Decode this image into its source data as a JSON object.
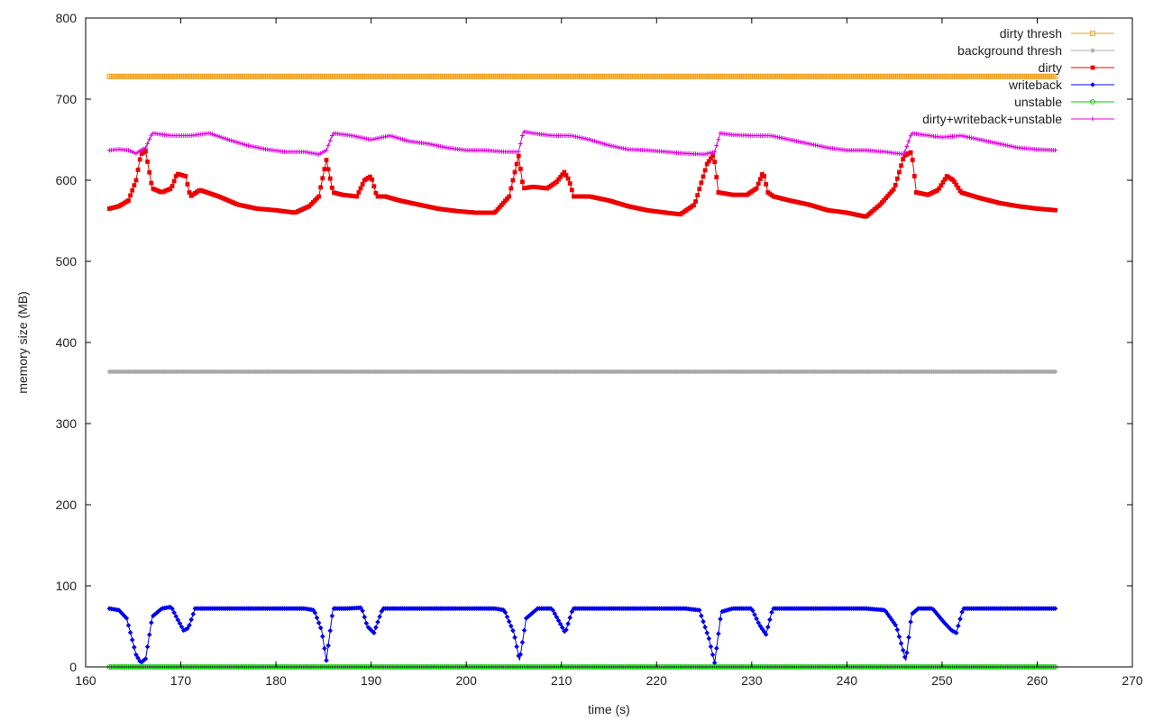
{
  "chart_data": {
    "type": "line",
    "xlabel": "time (s)",
    "ylabel": "memory size (MB)",
    "xlim": [
      160,
      270
    ],
    "ylim": [
      0,
      800
    ],
    "xticks": [
      160,
      170,
      180,
      190,
      200,
      210,
      220,
      230,
      240,
      250,
      260,
      270
    ],
    "yticks": [
      0,
      100,
      200,
      300,
      400,
      500,
      600,
      700,
      800
    ],
    "grid": false,
    "legend_position": "top-right",
    "series": [
      {
        "name": "dirty thresh",
        "color": "#f0a020",
        "marker": "square-open",
        "x": [
          162.5,
          170,
          180,
          190,
          200,
          210,
          220,
          230,
          240,
          250,
          262
        ],
        "values": [
          728,
          728,
          728,
          728,
          728,
          728,
          728,
          728,
          728,
          728,
          728
        ]
      },
      {
        "name": "background thresh",
        "color": "#a8a8a8",
        "marker": "star",
        "x": [
          162.5,
          170,
          180,
          190,
          200,
          210,
          220,
          230,
          240,
          250,
          262
        ],
        "values": [
          364,
          364,
          364,
          364,
          364,
          364,
          364,
          364,
          364,
          364,
          364
        ]
      },
      {
        "name": "dirty",
        "color": "#ee0000",
        "marker": "square",
        "x": [
          162.5,
          163.5,
          164.5,
          165.3,
          165.8,
          166.3,
          167,
          168,
          169,
          169.6,
          170.5,
          171,
          172,
          174,
          176,
          178,
          180,
          182,
          183.5,
          184.5,
          185.3,
          186,
          187,
          188.5,
          189.3,
          190,
          190.6,
          191.5,
          193,
          195,
          197,
          199,
          201,
          203,
          204.5,
          205.5,
          206,
          207,
          208.5,
          209.5,
          210.3,
          210.8,
          211.3,
          213,
          215,
          217,
          219,
          221,
          222.5,
          224,
          225.3,
          226,
          226.5,
          228,
          229.5,
          230.5,
          231.2,
          231.7,
          232.3,
          234,
          236,
          238,
          240,
          242,
          243.5,
          245,
          246,
          246.8,
          247.3,
          248.5,
          249.6,
          250.5,
          251.2,
          252,
          254,
          256,
          258,
          260,
          262
        ],
        "values": [
          565,
          568,
          575,
          600,
          632,
          636,
          590,
          585,
          590,
          608,
          605,
          580,
          588,
          580,
          570,
          565,
          563,
          560,
          568,
          580,
          625,
          585,
          582,
          580,
          600,
          605,
          580,
          580,
          575,
          570,
          565,
          562,
          560,
          560,
          580,
          630,
          590,
          592,
          590,
          598,
          610,
          600,
          580,
          580,
          575,
          568,
          563,
          560,
          558,
          570,
          620,
          632,
          585,
          582,
          582,
          590,
          610,
          585,
          580,
          575,
          570,
          563,
          560,
          555,
          570,
          590,
          630,
          635,
          585,
          582,
          588,
          605,
          600,
          585,
          578,
          572,
          568,
          565,
          563
        ]
      },
      {
        "name": "writeback",
        "color": "#0000ee",
        "marker": "diamond",
        "x": [
          162.5,
          163.5,
          164.3,
          164.8,
          165.3,
          165.8,
          166.3,
          167,
          168,
          169,
          169.6,
          170.3,
          170.8,
          171.5,
          173,
          175,
          177,
          179,
          181,
          183,
          184,
          184.8,
          185.3,
          186,
          187.5,
          189,
          189.6,
          190.3,
          191.2,
          193,
          195,
          197,
          199,
          201,
          203,
          204,
          205,
          205.6,
          206.3,
          207.5,
          209,
          209.8,
          210.4,
          211.2,
          213,
          215,
          217,
          219,
          221,
          223,
          224.5,
          225.5,
          226.1,
          226.8,
          228,
          230,
          230.8,
          231.5,
          232.2,
          234,
          236,
          238,
          240,
          242,
          244,
          245.2,
          246.2,
          246.8,
          247.5,
          249,
          250.2,
          251,
          251.5,
          252.2,
          254,
          256,
          258,
          260,
          262
        ],
        "values": [
          72,
          70,
          60,
          38,
          15,
          5,
          10,
          62,
          72,
          74,
          60,
          45,
          48,
          72,
          72,
          72,
          72,
          72,
          72,
          72,
          70,
          45,
          8,
          72,
          72,
          73,
          50,
          42,
          72,
          72,
          72,
          72,
          72,
          72,
          72,
          70,
          42,
          8,
          60,
          72,
          72,
          55,
          42,
          72,
          72,
          72,
          72,
          72,
          72,
          72,
          70,
          35,
          5,
          68,
          72,
          72,
          52,
          40,
          72,
          72,
          72,
          72,
          72,
          72,
          70,
          50,
          8,
          65,
          72,
          72,
          55,
          45,
          42,
          72,
          72,
          72,
          72,
          72,
          72
        ]
      },
      {
        "name": "unstable",
        "color": "#00cc00",
        "marker": "circle-open",
        "x": [
          162.5,
          170,
          180,
          190,
          200,
          210,
          220,
          230,
          240,
          250,
          262
        ],
        "values": [
          0,
          0,
          0,
          0,
          0,
          0,
          0,
          0,
          0,
          0,
          0
        ]
      },
      {
        "name": "dirty+writeback+unstable",
        "color": "#dd00dd",
        "marker": "plus",
        "x": [
          162.5,
          163.5,
          164.5,
          165.3,
          165.8,
          166.3,
          167,
          169,
          171,
          173,
          175,
          177,
          179,
          181,
          183,
          184.5,
          185.3,
          186,
          188,
          190,
          192,
          194,
          196,
          198,
          200,
          202,
          204,
          205.5,
          206,
          207,
          209,
          211,
          213,
          215,
          217,
          219,
          221,
          223,
          225,
          226.1,
          226.7,
          228,
          230,
          232,
          234,
          236,
          238,
          240,
          242,
          244,
          246,
          246.8,
          248,
          250,
          252,
          254,
          256,
          258,
          260,
          262
        ],
        "values": [
          637,
          638,
          637,
          633,
          637,
          640,
          658,
          655,
          655,
          658,
          650,
          643,
          638,
          635,
          635,
          632,
          637,
          658,
          655,
          650,
          655,
          648,
          645,
          640,
          637,
          637,
          635,
          635,
          660,
          658,
          655,
          655,
          650,
          643,
          638,
          637,
          635,
          633,
          632,
          635,
          658,
          656,
          655,
          655,
          650,
          645,
          640,
          637,
          637,
          635,
          632,
          658,
          656,
          653,
          655,
          650,
          645,
          640,
          638,
          637
        ]
      }
    ]
  }
}
